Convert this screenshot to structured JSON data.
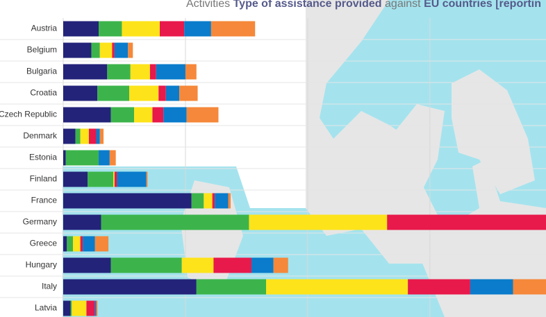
{
  "chart_data": {
    "type": "stacked-bar-horizontal",
    "title_parts": [
      {
        "text": "Activities",
        "bold": false
      },
      {
        "text": "Type of assistance provided",
        "bold": true
      },
      {
        "text": "against",
        "bold": false
      },
      {
        "text": "EU countries [reportin",
        "bold": true
      }
    ],
    "categories": [
      "Austria",
      "Belgium",
      "Bulgaria",
      "Croatia",
      "Czech Republic",
      "Denmark",
      "Estonia",
      "Finland",
      "France",
      "Germany",
      "Greece",
      "Hungary",
      "Italy",
      "Latvia"
    ],
    "series": [
      {
        "color": "#23237a",
        "values": [
          29,
          23,
          36,
          28,
          39,
          10,
          2,
          20,
          105,
          31,
          3,
          39,
          109,
          6
        ]
      },
      {
        "color": "#3cb44b",
        "values": [
          19,
          7,
          19,
          26,
          19,
          4,
          27,
          21,
          10,
          121,
          5,
          58,
          57,
          1
        ]
      },
      {
        "color": "#fde31a",
        "values": [
          31,
          10,
          16,
          24,
          15,
          7,
          0,
          1,
          7,
          113,
          6,
          26,
          116,
          12
        ]
      },
      {
        "color": "#e8194b",
        "values": [
          20,
          2,
          5,
          6,
          9,
          6,
          0,
          2,
          2,
          135,
          2,
          31,
          51,
          7
        ]
      },
      {
        "color": "#0a7ccb",
        "values": [
          22,
          11,
          24,
          11,
          19,
          3,
          9,
          24,
          11,
          null,
          10,
          18,
          35,
          1
        ]
      },
      {
        "color": "#f5883a",
        "values": [
          36,
          4,
          9,
          15,
          26,
          3,
          5,
          1,
          2,
          null,
          11,
          12,
          30,
          1
        ]
      }
    ],
    "xlim": [
      0,
      395
    ],
    "xticks": [
      0,
      100,
      200,
      300
    ],
    "grid": true
  }
}
